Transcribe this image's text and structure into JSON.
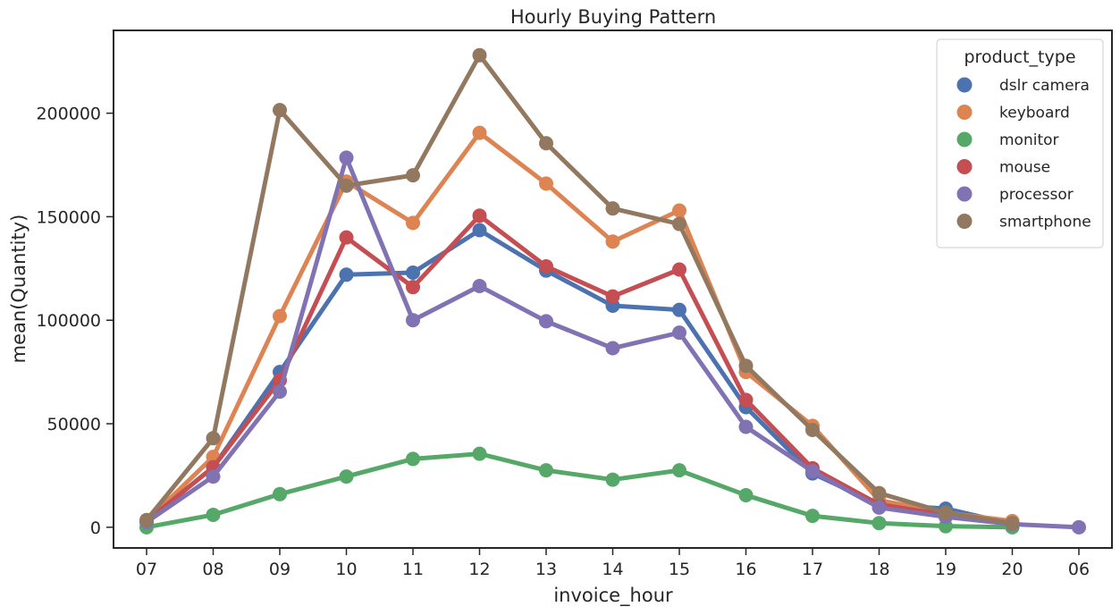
{
  "chart_data": {
    "type": "line",
    "title": "Hourly Buying Pattern",
    "xlabel": "invoice_hour",
    "ylabel": "mean(Quantity)",
    "categories": [
      "07",
      "08",
      "09",
      "10",
      "11",
      "12",
      "13",
      "14",
      "15",
      "16",
      "17",
      "18",
      "19",
      "20",
      "06"
    ],
    "ylim": [
      -10000,
      240000
    ],
    "yticks": [
      0,
      50000,
      100000,
      150000,
      200000
    ],
    "grid": false,
    "legend": {
      "title": "product_type",
      "placement": "top-right"
    },
    "series": [
      {
        "name": "dslr camera",
        "color": "#4c72b0",
        "values": [
          3000,
          29000,
          75000,
          122000,
          123000,
          143500,
          124000,
          107000,
          105000,
          58000,
          26000,
          11000,
          9000,
          1500,
          null
        ]
      },
      {
        "name": "keyboard",
        "color": "#dd8452",
        "values": [
          3000,
          34000,
          102000,
          167000,
          147000,
          190500,
          166000,
          138000,
          153000,
          75000,
          49000,
          13000,
          7000,
          3000,
          null
        ]
      },
      {
        "name": "monitor",
        "color": "#55a868",
        "values": [
          0,
          6000,
          16000,
          24500,
          33000,
          35500,
          27500,
          23000,
          27500,
          15500,
          5500,
          2000,
          500,
          0,
          null
        ]
      },
      {
        "name": "mouse",
        "color": "#c44e52",
        "values": [
          3000,
          29000,
          71000,
          140000,
          116000,
          150500,
          126000,
          111500,
          124500,
          61500,
          28500,
          11000,
          6000,
          1500,
          null
        ]
      },
      {
        "name": "processor",
        "color": "#8172b3",
        "values": [
          2500,
          24500,
          65500,
          178500,
          100000,
          116500,
          99500,
          86500,
          94000,
          48500,
          27000,
          9500,
          5000,
          1500,
          0
        ]
      },
      {
        "name": "smartphone",
        "color": "#937860",
        "values": [
          3500,
          43000,
          201500,
          165000,
          170000,
          228000,
          185500,
          154000,
          146500,
          78000,
          47000,
          16500,
          7000,
          2000,
          null
        ]
      }
    ]
  }
}
